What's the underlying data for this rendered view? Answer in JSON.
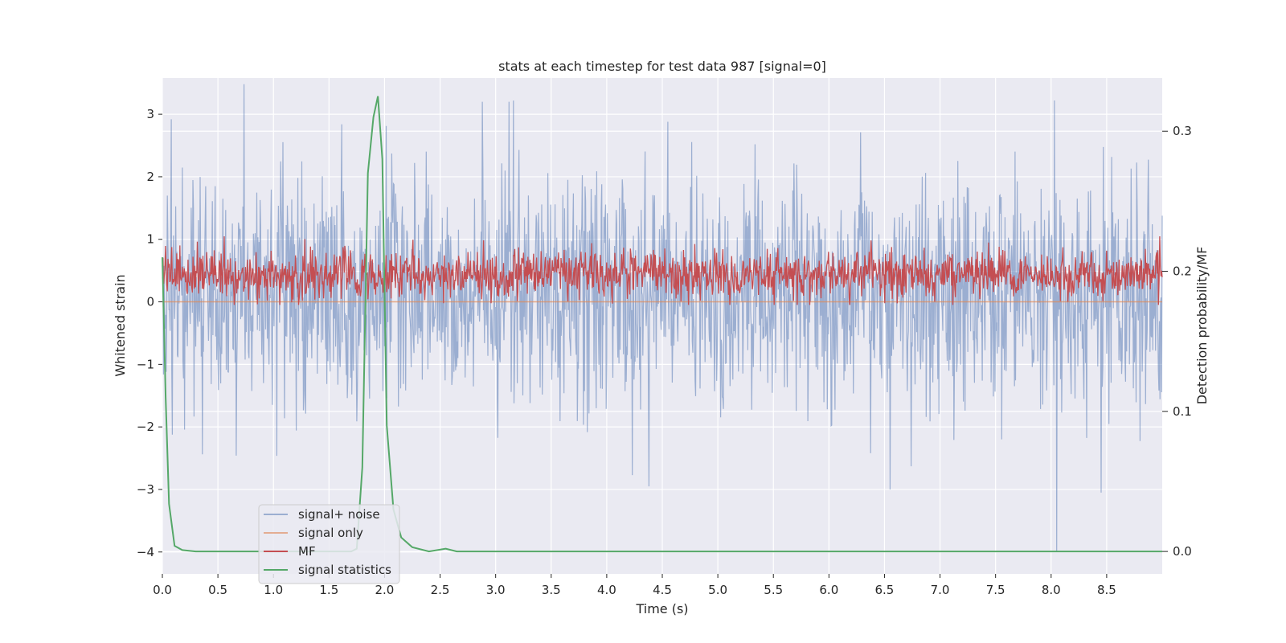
{
  "chart_data": {
    "type": "line",
    "title": "stats at each timestep for test data 987 [signal=0]",
    "xlabel": "Time (s)",
    "ylabel": "Whitened strain",
    "y2label": "Detection probability/MF",
    "xlim": [
      0.0,
      9.0
    ],
    "ylim": [
      -4.35,
      3.58
    ],
    "y2lim": [
      -0.016,
      0.338
    ],
    "xticks": [
      0.0,
      0.5,
      1.0,
      1.5,
      2.0,
      2.5,
      3.0,
      3.5,
      4.0,
      4.5,
      5.0,
      5.5,
      6.0,
      6.5,
      7.0,
      7.5,
      8.0,
      8.5
    ],
    "xtick_labels": [
      "0.0",
      "0.5",
      "1.0",
      "1.5",
      "2.0",
      "2.5",
      "3.0",
      "3.5",
      "4.0",
      "4.5",
      "5.0",
      "5.5",
      "6.0",
      "6.5",
      "7.0",
      "7.5",
      "8.0",
      "8.5"
    ],
    "yticks": [
      -4,
      -3,
      -2,
      -1,
      0,
      1,
      2,
      3
    ],
    "ytick_labels": [
      "−4",
      "−3",
      "−2",
      "−1",
      "0",
      "1",
      "2",
      "3"
    ],
    "y2ticks": [
      0.0,
      0.1,
      0.2,
      0.3
    ],
    "y2tick_labels": [
      "0.0",
      "0.1",
      "0.2",
      "0.3"
    ],
    "grid": true,
    "legend_position": "lower-left",
    "series": [
      {
        "name": "signal+ noise",
        "axis": "left",
        "color": "#4c72b0",
        "style": "noise",
        "x_range": [
          0.0,
          9.0
        ],
        "y_range_typical": [
          -1.8,
          2.0
        ],
        "y_extremes": [
          {
            "x": 8.05,
            "y": -4.0
          },
          {
            "x": 8.03,
            "y": 3.22
          },
          {
            "x": 2.88,
            "y": 3.2
          },
          {
            "x": 3.12,
            "y": 3.2
          },
          {
            "x": 0.08,
            "y": 2.92
          },
          {
            "x": 4.55,
            "y": 2.88
          },
          {
            "x": 8.45,
            "y": -3.05
          },
          {
            "x": 6.55,
            "y": -3.0
          },
          {
            "x": 4.38,
            "y": -2.95
          }
        ]
      },
      {
        "name": "signal only",
        "axis": "left",
        "color": "#dd8452",
        "style": "flat",
        "values": [
          [
            0.0,
            0.0
          ],
          [
            9.0,
            0.0
          ]
        ]
      },
      {
        "name": "MF",
        "axis": "right",
        "color": "#c44e52",
        "style": "noise",
        "x_range": [
          0.0,
          9.0
        ],
        "y_range_typical": [
          0.18,
          0.215
        ],
        "y_max": 0.225
      },
      {
        "name": "signal statistics",
        "axis": "right",
        "color": "#55a868",
        "style": "line",
        "points": [
          [
            0.0,
            0.21
          ],
          [
            0.03,
            0.11
          ],
          [
            0.06,
            0.034
          ],
          [
            0.11,
            0.004
          ],
          [
            0.18,
            0.001
          ],
          [
            0.3,
            0.0
          ],
          [
            1.7,
            0.0
          ],
          [
            1.75,
            0.002
          ],
          [
            1.8,
            0.06
          ],
          [
            1.85,
            0.27
          ],
          [
            1.9,
            0.31
          ],
          [
            1.94,
            0.325
          ],
          [
            1.98,
            0.28
          ],
          [
            2.02,
            0.09
          ],
          [
            2.08,
            0.03
          ],
          [
            2.15,
            0.01
          ],
          [
            2.25,
            0.003
          ],
          [
            2.4,
            0.0
          ],
          [
            2.55,
            0.002
          ],
          [
            2.65,
            0.0
          ],
          [
            6.0,
            0.0
          ],
          [
            9.0,
            0.0
          ]
        ]
      }
    ]
  }
}
